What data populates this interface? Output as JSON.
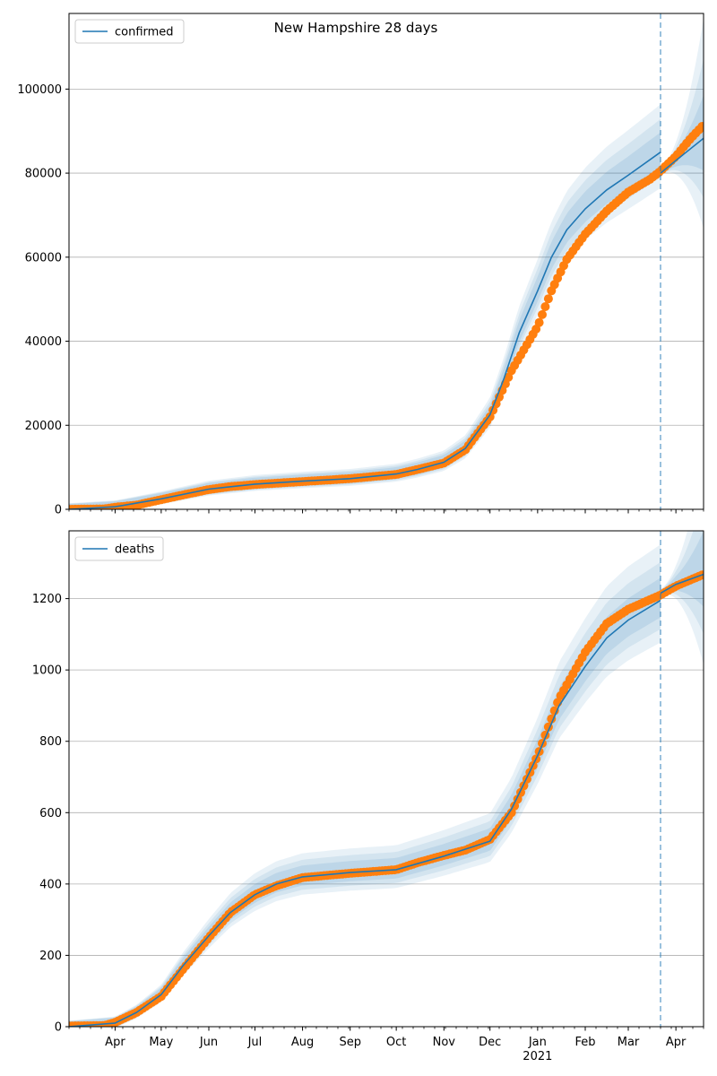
{
  "figure": {
    "title": "New Hampshire 28 days"
  },
  "colors": {
    "model": "#1f77b4",
    "observed": "#ff7f0e",
    "band": "#1f77b4",
    "grid": "#b0b0b0"
  },
  "chart_data": [
    {
      "type": "line",
      "title": "New Hampshire 28 days",
      "legend": {
        "label": "confirmed",
        "position": "top-left"
      },
      "x_range": [
        "2020-03-02",
        "2021-04-19"
      ],
      "x_ticks": [
        {
          "date": "2020-04-01",
          "label": "Apr"
        },
        {
          "date": "2020-05-01",
          "label": "May"
        },
        {
          "date": "2020-06-01",
          "label": "Jun"
        },
        {
          "date": "2020-07-01",
          "label": "Jul"
        },
        {
          "date": "2020-08-01",
          "label": "Aug"
        },
        {
          "date": "2020-09-01",
          "label": "Sep"
        },
        {
          "date": "2020-10-01",
          "label": "Oct"
        },
        {
          "date": "2020-11-01",
          "label": "Nov"
        },
        {
          "date": "2020-12-01",
          "label": "Dec"
        },
        {
          "date": "2021-01-01",
          "label": "Jan",
          "sublabel": "2021"
        },
        {
          "date": "2021-02-01",
          "label": "Feb"
        },
        {
          "date": "2021-03-01",
          "label": "Mar"
        },
        {
          "date": "2021-04-01",
          "label": "Apr"
        }
      ],
      "show_x_labels": false,
      "ylim": [
        0,
        118000
      ],
      "y_ticks": [
        0,
        20000,
        40000,
        60000,
        80000,
        100000
      ],
      "grid": "y",
      "vline_date": "2021-03-22",
      "series": [
        {
          "name": "confirmed",
          "role": "model",
          "points": [
            [
              "2020-03-02",
              0
            ],
            [
              "2020-04-01",
              600
            ],
            [
              "2020-05-01",
              2500
            ],
            [
              "2020-06-01",
              4800
            ],
            [
              "2020-07-01",
              6000
            ],
            [
              "2020-08-01",
              6700
            ],
            [
              "2020-09-01",
              7300
            ],
            [
              "2020-10-01",
              8400
            ],
            [
              "2020-10-15",
              9500
            ],
            [
              "2020-11-01",
              11200
            ],
            [
              "2020-11-15",
              14500
            ],
            [
              "2020-12-01",
              22500
            ],
            [
              "2020-12-10",
              31000
            ],
            [
              "2020-12-20",
              42000
            ],
            [
              "2021-01-01",
              52000
            ],
            [
              "2021-01-10",
              60000
            ],
            [
              "2021-01-20",
              66500
            ],
            [
              "2021-02-01",
              71500
            ],
            [
              "2021-02-15",
              76000
            ],
            [
              "2021-03-01",
              79500
            ],
            [
              "2021-03-22",
              85000
            ]
          ]
        },
        {
          "name": "",
          "role": "model-forecast",
          "points": [
            [
              "2021-03-22",
              80000
            ],
            [
              "2021-04-01",
              83000
            ],
            [
              "2021-04-19",
              88300
            ]
          ]
        },
        {
          "name": "",
          "role": "observed",
          "points": [
            [
              "2020-03-02",
              0
            ],
            [
              "2020-03-25",
              100
            ],
            [
              "2020-04-01",
              500
            ],
            [
              "2020-04-15",
              1000
            ],
            [
              "2020-05-01",
              2300
            ],
            [
              "2020-05-15",
              3400
            ],
            [
              "2020-06-01",
              4700
            ],
            [
              "2020-06-15",
              5400
            ],
            [
              "2020-07-01",
              5900
            ],
            [
              "2020-08-01",
              6600
            ],
            [
              "2020-09-01",
              7300
            ],
            [
              "2020-10-01",
              8300
            ],
            [
              "2020-10-15",
              9500
            ],
            [
              "2020-11-01",
              11000
            ],
            [
              "2020-11-15",
              14200
            ],
            [
              "2020-12-01",
              22000
            ],
            [
              "2020-12-15",
              33000
            ],
            [
              "2021-01-01",
              43500
            ],
            [
              "2021-01-10",
              52000
            ],
            [
              "2021-01-20",
              59500
            ],
            [
              "2021-02-01",
              65500
            ],
            [
              "2021-02-15",
              71000
            ],
            [
              "2021-03-01",
              75500
            ],
            [
              "2021-03-15",
              78500
            ],
            [
              "2021-03-22",
              80500
            ],
            [
              "2021-04-01",
              84000
            ],
            [
              "2021-04-10",
              88000
            ],
            [
              "2021-04-19",
              91500
            ]
          ]
        }
      ]
    },
    {
      "type": "line",
      "legend": {
        "label": "deaths",
        "position": "top-left"
      },
      "x_range": [
        "2020-03-02",
        "2021-04-19"
      ],
      "x_ticks": [
        {
          "date": "2020-04-01",
          "label": "Apr"
        },
        {
          "date": "2020-05-01",
          "label": "May"
        },
        {
          "date": "2020-06-01",
          "label": "Jun"
        },
        {
          "date": "2020-07-01",
          "label": "Jul"
        },
        {
          "date": "2020-08-01",
          "label": "Aug"
        },
        {
          "date": "2020-09-01",
          "label": "Sep"
        },
        {
          "date": "2020-10-01",
          "label": "Oct"
        },
        {
          "date": "2020-11-01",
          "label": "Nov"
        },
        {
          "date": "2020-12-01",
          "label": "Dec"
        },
        {
          "date": "2021-01-01",
          "label": "Jan",
          "sublabel": "2021"
        },
        {
          "date": "2021-02-01",
          "label": "Feb"
        },
        {
          "date": "2021-03-01",
          "label": "Mar"
        },
        {
          "date": "2021-04-01",
          "label": "Apr"
        }
      ],
      "show_x_labels": true,
      "ylim": [
        0,
        1390
      ],
      "y_ticks": [
        0,
        200,
        400,
        600,
        800,
        1000,
        1200
      ],
      "grid": "y",
      "vline_date": "2021-03-22",
      "series": [
        {
          "name": "deaths",
          "role": "model",
          "points": [
            [
              "2020-03-02",
              0
            ],
            [
              "2020-04-01",
              10
            ],
            [
              "2020-04-15",
              40
            ],
            [
              "2020-05-01",
              90
            ],
            [
              "2020-05-15",
              170
            ],
            [
              "2020-06-01",
              255
            ],
            [
              "2020-06-15",
              320
            ],
            [
              "2020-07-01",
              370
            ],
            [
              "2020-07-15",
              400
            ],
            [
              "2020-08-01",
              420
            ],
            [
              "2020-09-01",
              432
            ],
            [
              "2020-10-01",
              440
            ],
            [
              "2020-11-01",
              478
            ],
            [
              "2020-12-01",
              520
            ],
            [
              "2020-12-15",
              610
            ],
            [
              "2021-01-01",
              760
            ],
            [
              "2021-01-15",
              900
            ],
            [
              "2021-02-01",
              1010
            ],
            [
              "2021-02-15",
              1090
            ],
            [
              "2021-03-01",
              1140
            ],
            [
              "2021-03-22",
              1195
            ]
          ]
        },
        {
          "name": "",
          "role": "model-forecast",
          "points": [
            [
              "2021-03-22",
              1215
            ],
            [
              "2021-04-01",
              1240
            ],
            [
              "2021-04-19",
              1268
            ]
          ]
        },
        {
          "name": "",
          "role": "observed",
          "points": [
            [
              "2020-03-02",
              2
            ],
            [
              "2020-03-25",
              3
            ],
            [
              "2020-04-01",
              12
            ],
            [
              "2020-04-15",
              40
            ],
            [
              "2020-05-01",
              85
            ],
            [
              "2020-05-15",
              160
            ],
            [
              "2020-06-01",
              250
            ],
            [
              "2020-06-15",
              320
            ],
            [
              "2020-07-01",
              370
            ],
            [
              "2020-07-15",
              395
            ],
            [
              "2020-08-01",
              418
            ],
            [
              "2020-09-01",
              430
            ],
            [
              "2020-10-01",
              440
            ],
            [
              "2020-10-15",
              460
            ],
            [
              "2020-11-01",
              480
            ],
            [
              "2020-11-15",
              495
            ],
            [
              "2020-12-01",
              525
            ],
            [
              "2020-12-15",
              600
            ],
            [
              "2021-01-01",
              760
            ],
            [
              "2021-01-15",
              920
            ],
            [
              "2021-02-01",
              1050
            ],
            [
              "2021-02-15",
              1130
            ],
            [
              "2021-03-01",
              1170
            ],
            [
              "2021-03-22",
              1210
            ],
            [
              "2021-04-01",
              1235
            ],
            [
              "2021-04-19",
              1268
            ]
          ]
        }
      ]
    }
  ]
}
